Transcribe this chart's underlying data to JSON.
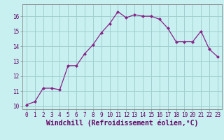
{
  "x": [
    0,
    1,
    2,
    3,
    4,
    5,
    6,
    7,
    8,
    9,
    10,
    11,
    12,
    13,
    14,
    15,
    16,
    17,
    18,
    19,
    20,
    21,
    22,
    23
  ],
  "y": [
    10.1,
    10.3,
    11.2,
    11.2,
    11.1,
    12.7,
    12.7,
    13.5,
    14.1,
    14.9,
    15.5,
    16.3,
    15.9,
    16.1,
    16.0,
    16.0,
    15.8,
    15.2,
    14.3,
    14.3,
    14.3,
    15.0,
    13.8,
    13.3
  ],
  "line_color": "#882288",
  "marker": "D",
  "marker_size": 2.0,
  "bg_color": "#c8f0f0",
  "grid_color": "#a0d0d0",
  "xlabel": "Windchill (Refroidissement éolien,°C)",
  "xlabel_fontsize": 7,
  "xlim": [
    -0.5,
    23.5
  ],
  "ylim": [
    9.8,
    16.8
  ],
  "yticks": [
    10,
    11,
    12,
    13,
    14,
    15,
    16
  ],
  "xticks": [
    0,
    1,
    2,
    3,
    4,
    5,
    6,
    7,
    8,
    9,
    10,
    11,
    12,
    13,
    14,
    15,
    16,
    17,
    18,
    19,
    20,
    21,
    22,
    23
  ],
  "tick_fontsize": 5.5,
  "linewidth": 0.9
}
